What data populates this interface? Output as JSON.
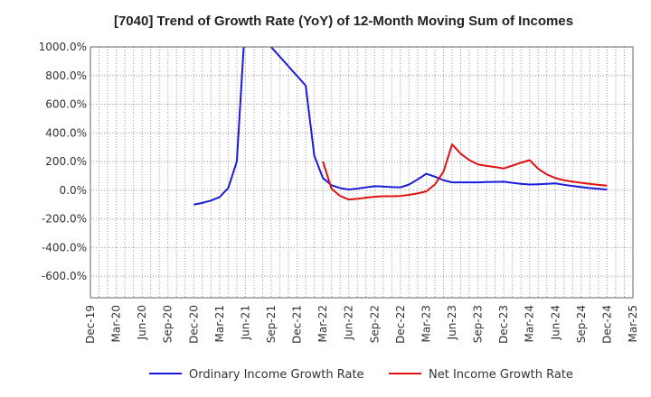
{
  "chart_data": {
    "type": "line",
    "title": "[7040]  Trend of Growth Rate (YoY) of 12-Month Moving Sum of Incomes",
    "xlabel": "",
    "ylabel": "",
    "ylim": [
      -750,
      1000
    ],
    "yticks": [
      1000,
      800,
      600,
      400,
      200,
      0,
      -200,
      -400,
      -600
    ],
    "ytick_labels": [
      "1000.0%",
      "800.0%",
      "600.0%",
      "400.0%",
      "200.0%",
      "0.0%",
      "-200.0%",
      "-400.0%",
      "-600.0%"
    ],
    "xticks": [
      "Dec-19",
      "Mar-20",
      "Jun-20",
      "Sep-20",
      "Dec-20",
      "Mar-21",
      "Jun-21",
      "Sep-21",
      "Dec-21",
      "Mar-22",
      "Jun-22",
      "Sep-22",
      "Dec-22",
      "Mar-23",
      "Jun-23",
      "Sep-23",
      "Dec-23",
      "Mar-24",
      "Jun-24",
      "Sep-24",
      "Dec-24",
      "Mar-25"
    ],
    "grid": true,
    "legend_position": "bottom",
    "series": [
      {
        "name": "Ordinary Income Growth Rate",
        "color": "#1a1adb",
        "x": [
          "Dec-20",
          "Jan-21",
          "Feb-21",
          "Mar-21",
          "Apr-21",
          "May-21",
          "Jun-21",
          "Jan-22",
          "Feb-22",
          "Mar-22",
          "Apr-22",
          "May-22",
          "Jun-22",
          "Jul-22",
          "Aug-22",
          "Sep-22",
          "Oct-22",
          "Nov-22",
          "Dec-22",
          "Jan-23",
          "Feb-23",
          "Mar-23",
          "Apr-23",
          "May-23",
          "Jun-23",
          "Jul-23",
          "Aug-23",
          "Sep-23",
          "Oct-23",
          "Nov-23",
          "Dec-23",
          "Jan-24",
          "Feb-24",
          "Mar-24",
          "Apr-24",
          "May-24",
          "Jun-24",
          "Jul-24",
          "Aug-24",
          "Sep-24",
          "Oct-24",
          "Nov-24",
          "Dec-24"
        ],
        "values": [
          -100,
          -88,
          -72,
          -48,
          15,
          200,
          1200,
          730,
          240,
          85,
          35,
          15,
          5,
          12,
          20,
          28,
          26,
          22,
          20,
          40,
          75,
          115,
          95,
          70,
          55,
          55,
          55,
          55,
          57,
          58,
          60,
          52,
          45,
          40,
          42,
          45,
          48,
          38,
          30,
          22,
          15,
          10,
          5
        ]
      },
      {
        "name": "Net Income Growth Rate",
        "color": "#e01010",
        "x": [
          "Mar-22",
          "Apr-22",
          "May-22",
          "Jun-22",
          "Jul-22",
          "Aug-22",
          "Sep-22",
          "Oct-22",
          "Nov-22",
          "Dec-22",
          "Jan-23",
          "Feb-23",
          "Mar-23",
          "Apr-23",
          "May-23",
          "Jun-23",
          "Jul-23",
          "Aug-23",
          "Sep-23",
          "Oct-23",
          "Nov-23",
          "Dec-23",
          "Jan-24",
          "Feb-24",
          "Mar-24",
          "Apr-24",
          "May-24",
          "Jun-24",
          "Jul-24",
          "Aug-24",
          "Sep-24",
          "Oct-24",
          "Nov-24",
          "Dec-24"
        ],
        "values": [
          200,
          10,
          -40,
          -65,
          -60,
          -52,
          -45,
          -42,
          -42,
          -40,
          -32,
          -22,
          -8,
          40,
          130,
          320,
          255,
          210,
          180,
          170,
          162,
          152,
          172,
          192,
          210,
          150,
          110,
          85,
          70,
          60,
          52,
          45,
          38,
          32
        ]
      }
    ]
  }
}
